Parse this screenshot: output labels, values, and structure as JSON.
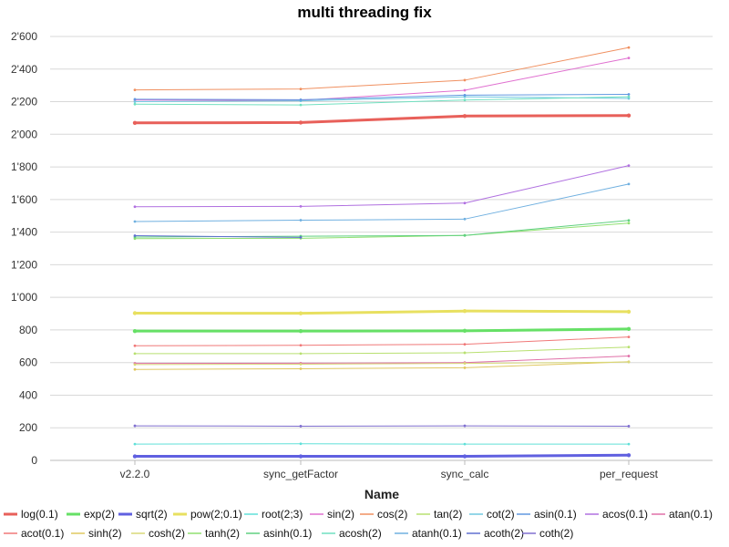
{
  "chart_data": {
    "type": "line",
    "title": "multi threading fix",
    "xlabel": "Name",
    "ylabel": "",
    "categories": [
      "v2.2.0",
      "sync_getFactor",
      "sync_calc",
      "per_request"
    ],
    "ylim": [
      0,
      2600
    ],
    "yticks": [
      0,
      200,
      400,
      600,
      800,
      1000,
      1200,
      1400,
      1600,
      1800,
      2000,
      2200,
      2400,
      2600
    ],
    "ytick_labels": [
      "0",
      "200",
      "400",
      "600",
      "800",
      "1'000",
      "1'200",
      "1'400",
      "1'600",
      "1'800",
      "2'000",
      "2'200",
      "2'400",
      "2'600"
    ],
    "grid": true,
    "legend_position": "bottom",
    "series": [
      {
        "name": "log(0.1)",
        "color": "#e8605a",
        "width": 3,
        "values": [
          2070,
          2072,
          2112,
          2115
        ]
      },
      {
        "name": "exp(2)",
        "color": "#66e066",
        "width": 3,
        "values": [
          793,
          793,
          795,
          806
        ]
      },
      {
        "name": "sqrt(2)",
        "color": "#6060e0",
        "width": 3,
        "values": [
          25,
          25,
          25,
          32
        ]
      },
      {
        "name": "pow(2;0.1)",
        "color": "#e8e060",
        "width": 3,
        "values": [
          903,
          902,
          916,
          912
        ]
      },
      {
        "name": "root(2;3)",
        "color": "#60e0d8",
        "width": 1,
        "values": [
          100,
          102,
          100,
          100
        ]
      },
      {
        "name": "sin(2)",
        "color": "#e070d0",
        "width": 1,
        "values": [
          2210,
          2208,
          2270,
          2468
        ]
      },
      {
        "name": "cos(2)",
        "color": "#f09060",
        "width": 1,
        "values": [
          2272,
          2278,
          2332,
          2532
        ]
      },
      {
        "name": "tan(2)",
        "color": "#b8e070",
        "width": 1,
        "values": [
          655,
          655,
          660,
          695
        ]
      },
      {
        "name": "cot(2)",
        "color": "#70c8e0",
        "width": 1,
        "values": [
          2200,
          2205,
          2230,
          2220
        ]
      },
      {
        "name": "asin(0.1)",
        "color": "#6098e0",
        "width": 1,
        "values": [
          2215,
          2212,
          2240,
          2245
        ]
      },
      {
        "name": "acos(0.1)",
        "color": "#b070e0",
        "width": 1,
        "values": [
          1556,
          1558,
          1578,
          1808
        ]
      },
      {
        "name": "atan(0.1)",
        "color": "#e070a8",
        "width": 1,
        "values": [
          595,
          596,
          600,
          640
        ]
      },
      {
        "name": "acot(0.1)",
        "color": "#f07878",
        "width": 1,
        "values": [
          703,
          706,
          712,
          757
        ]
      },
      {
        "name": "sinh(2)",
        "color": "#e0c860",
        "width": 1,
        "values": [
          558,
          562,
          568,
          605
        ]
      },
      {
        "name": "cosh(2)",
        "color": "#d8d878",
        "width": 1,
        "values": [
          588,
          590,
          595,
          603
        ]
      },
      {
        "name": "tanh(2)",
        "color": "#90e070",
        "width": 1,
        "values": [
          1360,
          1362,
          1380,
          1455
        ]
      },
      {
        "name": "asinh(0.1)",
        "color": "#60d080",
        "width": 1,
        "values": [
          1370,
          1375,
          1380,
          1472
        ]
      },
      {
        "name": "acosh(2)",
        "color": "#70e0c0",
        "width": 1,
        "values": [
          2185,
          2180,
          2210,
          2230
        ]
      },
      {
        "name": "atanh(0.1)",
        "color": "#70b0e0",
        "width": 1,
        "values": [
          1465,
          1473,
          1480,
          1695
        ]
      },
      {
        "name": "acoth(2)",
        "color": "#6070d0",
        "width": 1,
        "values": [
          1378,
          1368,
          null,
          null
        ]
      },
      {
        "name": "coth(2)",
        "color": "#8070d0",
        "width": 1,
        "values": [
          212,
          210,
          212,
          210
        ]
      }
    ]
  }
}
